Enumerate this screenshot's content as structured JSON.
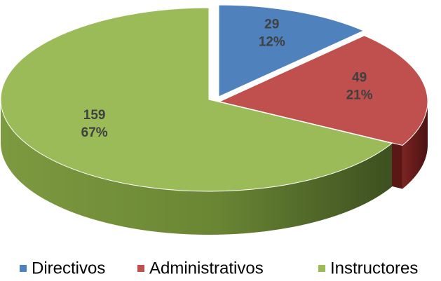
{
  "chart_data": {
    "type": "pie3d",
    "categories": [
      "Directivos",
      "Administrativos",
      "Instructores"
    ],
    "values": [
      29,
      49,
      159
    ],
    "percent_labels": [
      "12%",
      "21%",
      "67%"
    ],
    "colors": [
      "#4f81bd",
      "#c0504d",
      "#9bbb59"
    ],
    "legend": "bottom"
  }
}
